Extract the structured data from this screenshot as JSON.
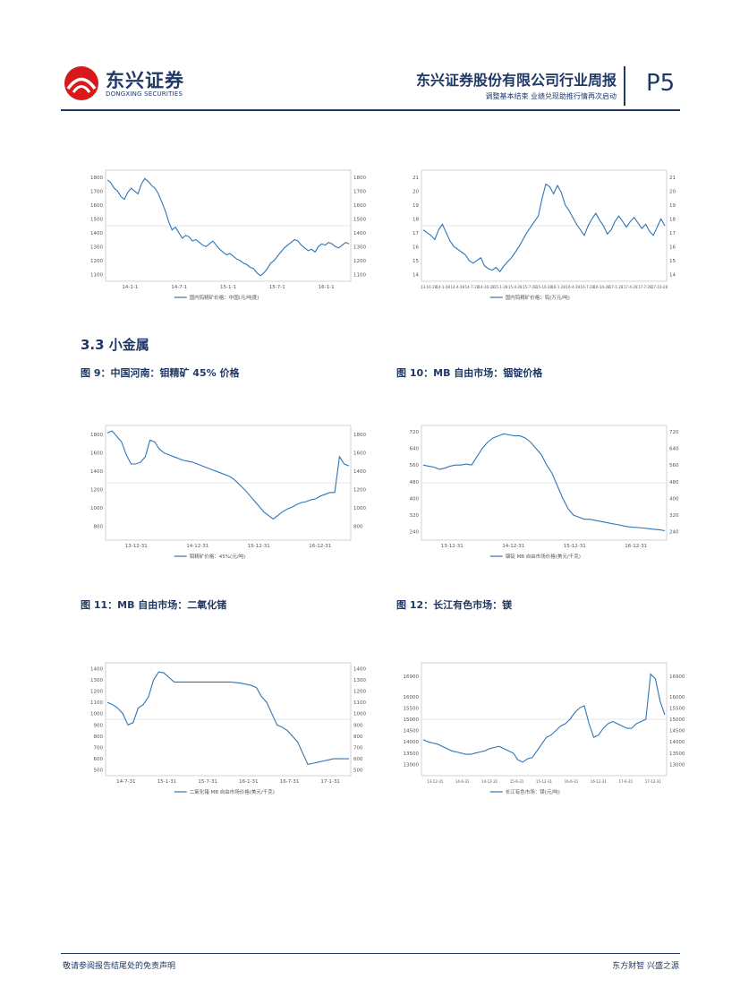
{
  "header": {
    "company_cn": "东兴证券",
    "company_en": "DONGXING SECURITIES",
    "title": "东兴证券股份有限公司行业周报",
    "subtitle": "调整基本结束 业绩兑现助推行情再次启动",
    "page": "P5"
  },
  "section": {
    "title": "3.3 小金属"
  },
  "colors": {
    "brand": "#1f3864",
    "line": "#2e75b6",
    "logo_red": "#d7191c"
  },
  "charts": [
    {
      "id": "c1",
      "title": "",
      "ylim": [
        1050,
        1850
      ],
      "yticks": [
        "1800",
        "1700",
        "1600",
        "1500",
        "1400",
        "1300",
        "1200",
        "1100"
      ],
      "xticks": [
        "14-1-1",
        "14-7-1",
        "15-1-1",
        "15-7-1",
        "16-1-1"
      ],
      "legend": "国内钨精矿价格：中国(元/吨度)",
      "values": [
        1780,
        1760,
        1720,
        1700,
        1660,
        1640,
        1690,
        1720,
        1700,
        1680,
        1750,
        1790,
        1770,
        1740,
        1720,
        1680,
        1620,
        1560,
        1480,
        1420,
        1440,
        1400,
        1360,
        1380,
        1370,
        1340,
        1350,
        1330,
        1310,
        1300,
        1320,
        1340,
        1310,
        1280,
        1260,
        1240,
        1250,
        1230,
        1210,
        1200,
        1180,
        1170,
        1150,
        1140,
        1110,
        1090,
        1110,
        1140,
        1180,
        1200,
        1230,
        1260,
        1290,
        1310,
        1330,
        1350,
        1340,
        1310,
        1290,
        1270,
        1280,
        1260,
        1300,
        1320,
        1310,
        1330,
        1320,
        1300,
        1290,
        1310,
        1330,
        1320
      ]
    },
    {
      "id": "c2",
      "title": "",
      "ylim": [
        13.5,
        21.5
      ],
      "yticks": [
        "21",
        "20",
        "19",
        "18",
        "17",
        "16",
        "15",
        "14"
      ],
      "xticks": [
        "13-10-28",
        "14-1-28",
        "14-4-28",
        "14-7-28",
        "14-10-28",
        "15-1-28",
        "15-4-28",
        "15-7-28",
        "15-10-28",
        "16-1-28",
        "16-4-28",
        "16-7-28",
        "16-10-28",
        "17-1-28",
        "17-4-28",
        "17-7-28",
        "17-10-28"
      ],
      "legend": "国内钨精矿价格：钨(万元/吨)",
      "values": [
        17.2,
        17.0,
        16.8,
        16.5,
        17.2,
        17.6,
        17.0,
        16.4,
        16.0,
        15.8,
        15.6,
        15.4,
        15.0,
        14.8,
        15.0,
        15.2,
        14.6,
        14.4,
        14.3,
        14.5,
        14.2,
        14.6,
        14.9,
        15.2,
        15.6,
        16.0,
        16.5,
        17.0,
        17.4,
        17.8,
        18.2,
        19.5,
        20.5,
        20.3,
        19.8,
        20.4,
        19.9,
        19.0,
        18.6,
        18.1,
        17.6,
        17.2,
        16.8,
        17.5,
        18.0,
        18.4,
        17.9,
        17.5,
        16.9,
        17.2,
        17.8,
        18.2,
        17.8,
        17.4,
        17.8,
        18.1,
        17.7,
        17.3,
        17.6,
        17.1,
        16.8,
        17.4,
        18.0,
        17.5
      ]
    },
    {
      "id": "c3",
      "title": "图 9：中国河南：钼精矿 45% 价格",
      "ylim": [
        650,
        1900
      ],
      "yticks": [
        "1800",
        "1600",
        "1400",
        "1200",
        "1000",
        "800"
      ],
      "xticks": [
        "13-12-31",
        "14-12-31",
        "15-12-31",
        "16-12-31"
      ],
      "legend": "钼精矿价格：45%(元/吨)",
      "values": [
        1820,
        1840,
        1780,
        1720,
        1580,
        1480,
        1480,
        1500,
        1560,
        1740,
        1720,
        1640,
        1600,
        1580,
        1560,
        1540,
        1520,
        1510,
        1500,
        1480,
        1460,
        1440,
        1420,
        1400,
        1380,
        1360,
        1340,
        1300,
        1250,
        1200,
        1140,
        1080,
        1020,
        960,
        920,
        880,
        920,
        960,
        990,
        1010,
        1040,
        1060,
        1070,
        1090,
        1100,
        1130,
        1150,
        1170,
        1170,
        1560,
        1480,
        1460
      ]
    },
    {
      "id": "c4",
      "title": "图 10：MB 自由市场：铟锭价格",
      "ylim": [
        200,
        750
      ],
      "yticks": [
        "720",
        "640",
        "560",
        "480",
        "400",
        "320",
        "240"
      ],
      "xticks": [
        "13-12-31",
        "14-12-31",
        "15-12-31",
        "16-12-31"
      ],
      "legend": "铟锭 MB 自由市场价格(美元/千克)",
      "values": [
        560,
        555,
        550,
        540,
        545,
        555,
        560,
        560,
        565,
        560,
        600,
        640,
        670,
        690,
        700,
        710,
        705,
        700,
        700,
        690,
        670,
        640,
        610,
        560,
        520,
        460,
        400,
        350,
        320,
        310,
        300,
        300,
        295,
        290,
        285,
        280,
        275,
        270,
        265,
        262,
        260,
        258,
        255,
        252,
        250,
        245
      ]
    },
    {
      "id": "c5",
      "title": "图 11：MB 自由市场：二氧化锗",
      "ylim": [
        450,
        1450
      ],
      "yticks": [
        "1400",
        "1300",
        "1200",
        "1100",
        "1000",
        "900",
        "800",
        "700",
        "600",
        "500"
      ],
      "xticks": [
        "14-7-31",
        "15-1-31",
        "15-7-31",
        "16-1-31",
        "16-7-31",
        "17-1-31"
      ],
      "legend": "二氧化锗 MB 自由市场价格(美元/千克)",
      "values": [
        1100,
        1080,
        1050,
        1000,
        900,
        920,
        1050,
        1080,
        1150,
        1300,
        1370,
        1360,
        1320,
        1280,
        1280,
        1280,
        1280,
        1280,
        1280,
        1280,
        1280,
        1280,
        1280,
        1280,
        1280,
        1275,
        1270,
        1260,
        1250,
        1230,
        1150,
        1100,
        1000,
        900,
        880,
        850,
        800,
        750,
        650,
        550,
        560,
        570,
        580,
        590,
        600,
        600,
        600,
        600
      ]
    },
    {
      "id": "c6",
      "title": "图 12：长江有色市场：镁",
      "ylim": [
        12500,
        17500
      ],
      "yticks": [
        "16900",
        "16000",
        "15500",
        "15000",
        "14500",
        "14000",
        "13500",
        "13000"
      ],
      "xticks": [
        "13-12-31",
        "14-6-31",
        "14-12-31",
        "15-6-31",
        "15-12-31",
        "16-6-31",
        "16-12-31",
        "17-6-31",
        "17-12-31"
      ],
      "legend": "长江有色市场：镁(元/吨)",
      "values": [
        14100,
        14000,
        13950,
        13900,
        13800,
        13700,
        13600,
        13550,
        13500,
        13450,
        13450,
        13500,
        13550,
        13600,
        13700,
        13750,
        13800,
        13700,
        13600,
        13500,
        13200,
        13100,
        13250,
        13300,
        13600,
        13900,
        14200,
        14300,
        14500,
        14700,
        14800,
        15000,
        15300,
        15500,
        15600,
        14800,
        14200,
        14300,
        14600,
        14800,
        14900,
        14800,
        14700,
        14600,
        14600,
        14800,
        14900,
        15000,
        17000,
        16800,
        15800,
        15200
      ]
    }
  ],
  "footer": {
    "left": "敬请参阅报告结尾处的免责声明",
    "right": "东方财智 兴盛之源"
  }
}
